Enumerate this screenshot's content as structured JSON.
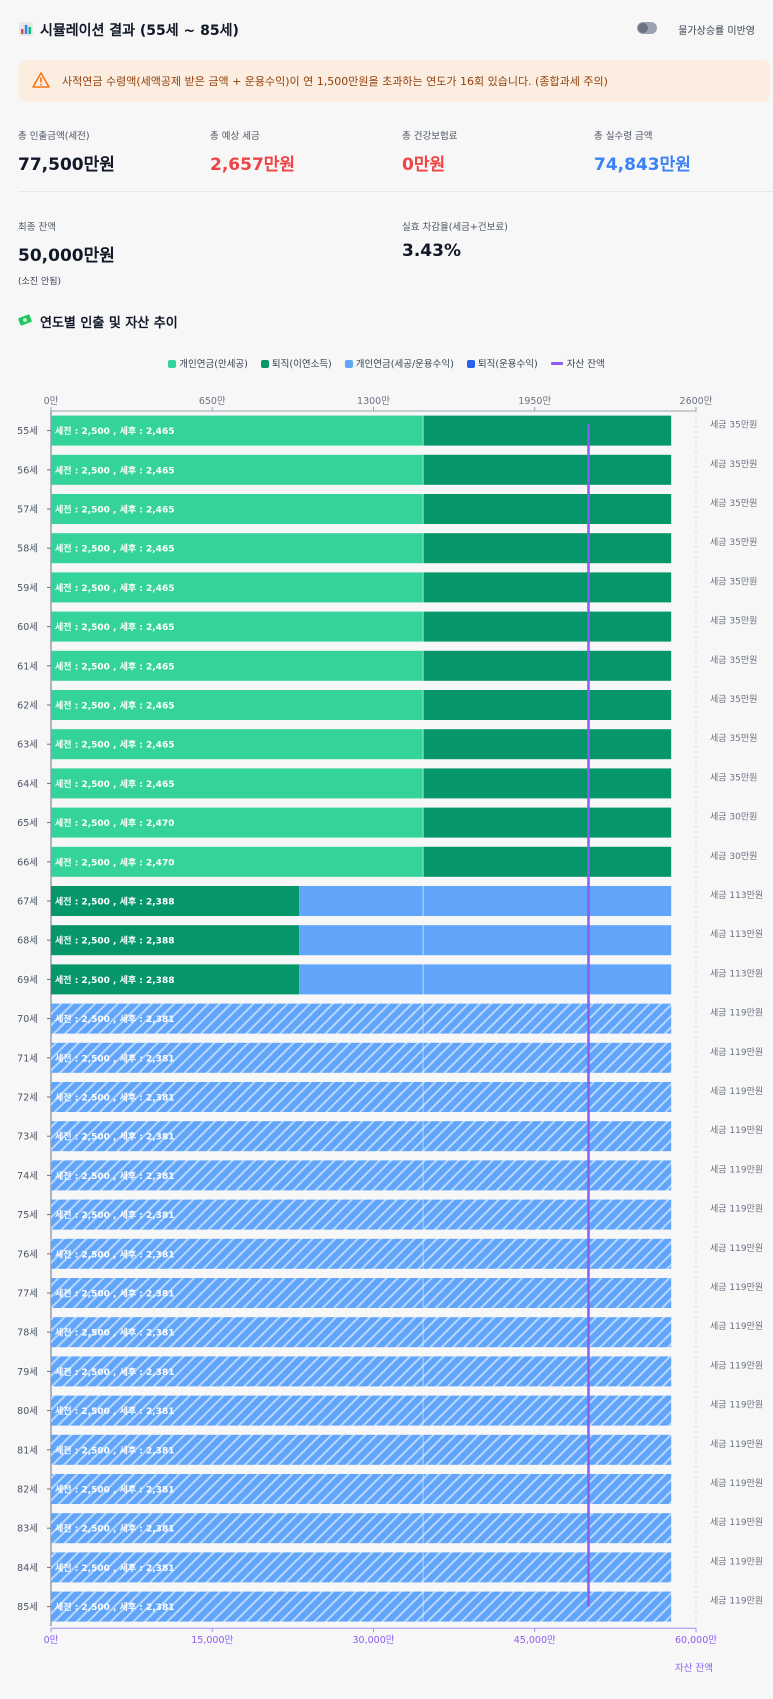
{
  "header": {
    "title": "시뮬레이션 결과 (55세 ~ 85세)",
    "title_icon": "bar-chart-icon",
    "toggle_label": "물가상승률 미반영"
  },
  "warning": {
    "icon": "warning-triangle-icon",
    "text": "사적연금 수령액(세액공제 받은 금액 + 운용수익)이 연 1,500만원을 초과하는 연도가 16회 있습니다. (종합과세 주의)"
  },
  "stats": [
    {
      "label": "총 인출금액(세전)",
      "value": "77,500만원"
    },
    {
      "label": "총 예상 세금",
      "value": "2,657만원"
    },
    {
      "label": "총 건강보험료",
      "value": "0만원"
    },
    {
      "label": "총 실수령 금액",
      "value": "74,843만원"
    },
    {
      "label": "최종 잔액",
      "value": "50,000만원",
      "note": "(소진 안됨)"
    },
    {
      "label": "실효 차감율(세금+건보료)",
      "value": "3.43%"
    }
  ],
  "section": {
    "title": "연도별 인출 및 자산 추이",
    "icon": "money-icon"
  },
  "legend": [
    {
      "label": "개인연금(안세공)",
      "color": "#34d399"
    },
    {
      "label": "퇴직(이연소득)",
      "color": "#059669"
    },
    {
      "label": "개인연금(세공/운용수익)",
      "color": "#60a5fa"
    },
    {
      "label": "퇴직(운용수익)",
      "color": "#2563eb"
    },
    {
      "label": "자산 잔액",
      "color": "#8b5cf6",
      "line": true
    }
  ],
  "chart_data": {
    "type": "bar",
    "orientation": "horizontal",
    "stacked": true,
    "top_axis": {
      "ticks": [
        "0만",
        "650만",
        "1300만",
        "1950만",
        "2600만"
      ],
      "range": [
        0,
        2600
      ]
    },
    "bottom_axis": {
      "ticks": [
        "0만",
        "15,000만",
        "30,000만",
        "45,000만",
        "60,000만"
      ],
      "range": [
        0,
        60000
      ],
      "label": "자산 잔액"
    },
    "categories": [
      "55세",
      "56세",
      "57세",
      "58세",
      "59세",
      "60세",
      "61세",
      "62세",
      "63세",
      "64세",
      "65세",
      "66세",
      "67세",
      "68세",
      "69세",
      "70세",
      "71세",
      "72세",
      "73세",
      "74세",
      "75세",
      "76세",
      "77세",
      "78세",
      "79세",
      "80세",
      "81세",
      "82세",
      "83세",
      "84세",
      "85세"
    ],
    "series": [
      {
        "name": "개인연금(안세공)",
        "color": "#34d399",
        "values": [
          1500,
          1500,
          1500,
          1500,
          1500,
          1500,
          1500,
          1500,
          1500,
          1500,
          1500,
          1500,
          0,
          0,
          0,
          0,
          0,
          0,
          0,
          0,
          0,
          0,
          0,
          0,
          0,
          0,
          0,
          0,
          0,
          0,
          0
        ]
      },
      {
        "name": "퇴직(이연소득)",
        "color": "#059669",
        "values": [
          1000,
          1000,
          1000,
          1000,
          1000,
          1000,
          1000,
          1000,
          1000,
          1000,
          1000,
          1000,
          1000,
          1000,
          1000,
          0,
          0,
          0,
          0,
          0,
          0,
          0,
          0,
          0,
          0,
          0,
          0,
          0,
          0,
          0,
          0
        ]
      },
      {
        "name": "개인연금(세공/운용수익)",
        "color": "#60a5fa",
        "values": [
          0,
          0,
          0,
          0,
          0,
          0,
          0,
          0,
          0,
          0,
          0,
          0,
          1500,
          1500,
          1500,
          2500,
          2500,
          2500,
          2500,
          2500,
          2500,
          2500,
          2500,
          2500,
          2500,
          2500,
          2500,
          2500,
          2500,
          2500,
          2500
        ]
      },
      {
        "name": "퇴직(운용수익)",
        "color": "#2563eb",
        "values": [
          0,
          0,
          0,
          0,
          0,
          0,
          0,
          0,
          0,
          0,
          0,
          0,
          0,
          0,
          0,
          0,
          0,
          0,
          0,
          0,
          0,
          0,
          0,
          0,
          0,
          0,
          0,
          0,
          0,
          0,
          0
        ]
      }
    ],
    "hatched_from_index": 15,
    "bar_labels": [
      "세전 : 2,500 , 세후 : 2,465",
      "세전 : 2,500 , 세후 : 2,465",
      "세전 : 2,500 , 세후 : 2,465",
      "세전 : 2,500 , 세후 : 2,465",
      "세전 : 2,500 , 세후 : 2,465",
      "세전 : 2,500 , 세후 : 2,465",
      "세전 : 2,500 , 세후 : 2,465",
      "세전 : 2,500 , 세후 : 2,465",
      "세전 : 2,500 , 세후 : 2,465",
      "세전 : 2,500 , 세후 : 2,465",
      "세전 : 2,500 , 세후 : 2,470",
      "세전 : 2,500 , 세후 : 2,470",
      "세전 : 2,500 , 세후 : 2,388",
      "세전 : 2,500 , 세후 : 2,388",
      "세전 : 2,500 , 세후 : 2,388",
      "세전 : 2,500 , 세후 : 2,381",
      "세전 : 2,500 , 세후 : 2,381",
      "세전 : 2,500 , 세후 : 2,381",
      "세전 : 2,500 , 세후 : 2,381",
      "세전 : 2,500 , 세후 : 2,381",
      "세전 : 2,500 , 세후 : 2,381",
      "세전 : 2,500 , 세후 : 2,381",
      "세전 : 2,500 , 세후 : 2,381",
      "세전 : 2,500 , 세후 : 2,381",
      "세전 : 2,500 , 세후 : 2,381",
      "세전 : 2,500 , 세후 : 2,381",
      "세전 : 2,500 , 세후 : 2,381",
      "세전 : 2,500 , 세후 : 2,381",
      "세전 : 2,500 , 세후 : 2,381",
      "세전 : 2,500 , 세후 : 2,381",
      "세전 : 2,500 , 세후 : 2,381"
    ],
    "tax_labels": [
      "세금 35만원",
      "세금 35만원",
      "세금 35만원",
      "세금 35만원",
      "세금 35만원",
      "세금 35만원",
      "세금 35만원",
      "세금 35만원",
      "세금 35만원",
      "세금 35만원",
      "세금 30만원",
      "세금 30만원",
      "세금 113만원",
      "세금 113만원",
      "세금 113만원",
      "세금 119만원",
      "세금 119만원",
      "세금 119만원",
      "세금 119만원",
      "세금 119만원",
      "세금 119만원",
      "세금 119만원",
      "세금 119만원",
      "세금 119만원",
      "세금 119만원",
      "세금 119만원",
      "세금 119만원",
      "세금 119만원",
      "세금 119만원",
      "세금 119만원",
      "세금 119만원"
    ],
    "balance": {
      "name": "자산 잔액",
      "color": "#8b5cf6",
      "values": [
        50000,
        50000,
        50000,
        50000,
        50000,
        50000,
        50000,
        50000,
        50000,
        50000,
        50000,
        50000,
        50000,
        50000,
        50000,
        50000,
        50000,
        50000,
        50000,
        50000,
        50000,
        50000,
        50000,
        50000,
        50000,
        50000,
        50000,
        50000,
        50000,
        50000,
        50000
      ]
    }
  }
}
